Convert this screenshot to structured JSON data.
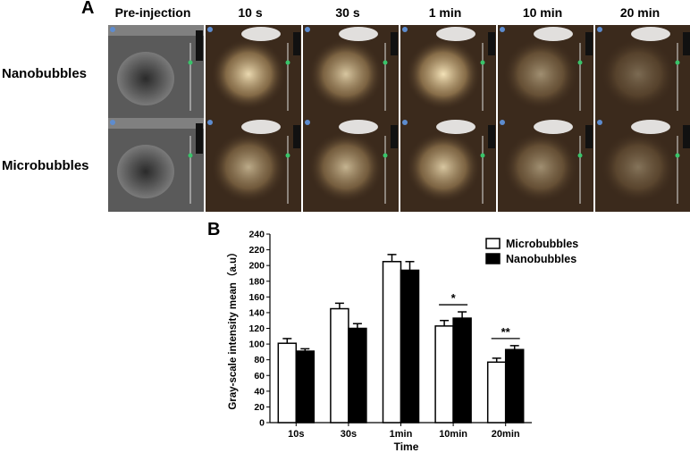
{
  "panel_a": {
    "letter": "A",
    "columns": [
      "Pre-injection",
      "10 s",
      "30 s",
      "1 min",
      "10 min",
      "20 min"
    ],
    "rows": [
      "Nanobubbles",
      "Microbubbles"
    ]
  },
  "panel_b": {
    "letter": "B"
  },
  "chart_data": {
    "type": "bar",
    "categories": [
      "10s",
      "30s",
      "1min",
      "10min",
      "20min"
    ],
    "series": [
      {
        "name": "Microbubbles",
        "values": [
          101,
          145,
          205,
          123,
          77
        ],
        "errors": [
          6,
          7,
          9,
          7,
          5
        ],
        "color": "#ffffff"
      },
      {
        "name": "Nanobubbles",
        "values": [
          91,
          120,
          194,
          133,
          93
        ],
        "errors": [
          3,
          6,
          11,
          8,
          5
        ],
        "color": "#000000"
      }
    ],
    "xlabel": "Time",
    "ylabel": "Gray-scale intensity mean（a.u）",
    "ylim": [
      0,
      240
    ],
    "yticks": [
      0,
      20,
      40,
      60,
      80,
      100,
      120,
      140,
      160,
      180,
      200,
      220,
      240
    ],
    "grid": false,
    "legend_position": "top-right",
    "annotations": [
      {
        "category": "10min",
        "text": "*"
      },
      {
        "category": "20min",
        "text": "**"
      }
    ]
  }
}
